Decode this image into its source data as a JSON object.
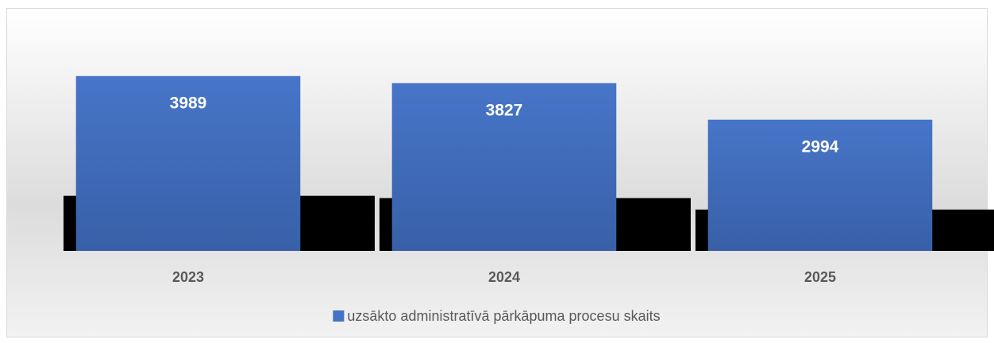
{
  "chart_data": {
    "type": "bar",
    "categories": [
      "2023",
      "2024",
      "2025"
    ],
    "series": [
      {
        "name": "uzsākto administratīvā pārkāpuma procesu skaits",
        "color": "#4472c4",
        "values": [
          3989,
          3827,
          2994
        ]
      }
    ],
    "ylim": [
      0,
      5000
    ],
    "grid": false,
    "legend": "bottom"
  }
}
